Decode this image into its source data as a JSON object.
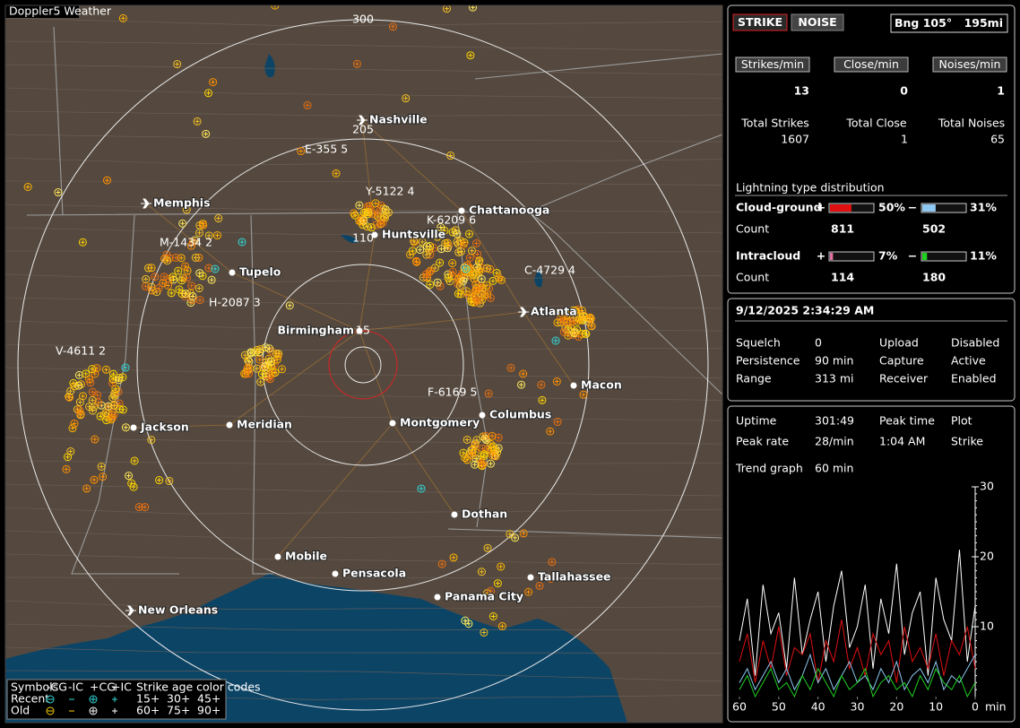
{
  "map": {
    "title": "Doppler5 Weather",
    "range_labels": [
      "300",
      "205",
      "110",
      "15"
    ],
    "cities": [
      "Nashville",
      "Memphis",
      "Chattanooga",
      "Huntsville",
      "Tupelo",
      "Birmingham",
      "Atlanta",
      "Macon",
      "Jackson",
      "Meridian",
      "Montgomery",
      "Columbus",
      "Dothan",
      "Mobile",
      "Pensacola",
      "Tallahassee",
      "Panama City",
      "New Orleans"
    ],
    "storm_labels": [
      "E-355 5",
      "Y-5122 4",
      "K-6209 6",
      "M-1434 2",
      "C-4729 4",
      "H-2087 3",
      "V-4611 2",
      "F-6169 5"
    ],
    "legend": {
      "symbols_label": "Symbols",
      "symbol_headers": [
        "-CG",
        "-IC",
        "+CG",
        "+IC"
      ],
      "age_title": "Strike age color codes",
      "rows": [
        {
          "label": "Recent",
          "ages": [
            "15+",
            "30+",
            "45+"
          ]
        },
        {
          "label": "Old",
          "ages": [
            "60+",
            "75+",
            "90+"
          ]
        }
      ]
    }
  },
  "strike_panel": {
    "buttons": [
      "STRIKE",
      "NOISE"
    ],
    "bearing": "Bng 105°",
    "distance": "195mi",
    "rates": [
      {
        "label": "Strikes/min",
        "value": 13
      },
      {
        "label": "Close/min",
        "value": 0
      },
      {
        "label": "Noises/min",
        "value": 1
      }
    ],
    "totals": [
      {
        "label": "Total Strikes",
        "value": 1607
      },
      {
        "label": "Total Close",
        "value": 1
      },
      {
        "label": "Total Noises",
        "value": 65
      }
    ]
  },
  "distribution": {
    "title": "Lightning type distribution",
    "count_label": "Count",
    "rows": [
      {
        "label": "Cloud-ground",
        "positive": {
          "sign": "+",
          "percent": 50,
          "label": "50%",
          "count": 811,
          "color": "#e01010"
        },
        "negative": {
          "sign": "−",
          "percent": 31,
          "label": "31%",
          "count": 502,
          "color": "#8ec8f0"
        }
      },
      {
        "label": "Intracloud",
        "positive": {
          "sign": "+",
          "percent": 7,
          "label": "7%",
          "count": 114,
          "color": "#e070a0"
        },
        "negative": {
          "sign": "−",
          "percent": 11,
          "label": "11%",
          "count": 180,
          "color": "#20d020"
        }
      }
    ]
  },
  "status": {
    "datetime": "9/12/2025 2:34:29 AM",
    "fields": [
      [
        "Squelch",
        "0",
        "Upload",
        "Disabled"
      ],
      [
        "Persistence",
        "90 min",
        "Capture",
        "Active"
      ],
      [
        "Range",
        "313 mi",
        "Receiver",
        "Enabled"
      ]
    ]
  },
  "trend": {
    "fields": [
      [
        "Uptime",
        "301:49",
        "Peak time",
        "Plot"
      ],
      [
        "Peak rate",
        "28/min",
        "1:04 AM",
        "Strike"
      ]
    ],
    "label": "Trend graph",
    "window": "60 min",
    "unit": "min",
    "xlim": [
      60,
      0
    ],
    "ylim": [
      0,
      30
    ],
    "xticks": [
      60,
      50,
      40,
      30,
      20,
      10,
      0
    ],
    "yticks": [
      10,
      20,
      30
    ],
    "x": [
      60,
      58,
      56,
      54,
      52,
      50,
      48,
      46,
      44,
      42,
      40,
      38,
      36,
      34,
      32,
      30,
      28,
      26,
      24,
      22,
      20,
      18,
      16,
      14,
      12,
      10,
      8,
      6,
      4,
      2,
      0
    ],
    "series": [
      {
        "color": "#ffffff",
        "values": [
          8,
          14,
          3,
          16,
          9,
          12,
          4,
          17,
          6,
          11,
          15,
          5,
          13,
          18,
          7,
          10,
          16,
          4,
          14,
          9,
          19,
          6,
          12,
          15,
          3,
          17,
          11,
          8,
          21,
          5,
          13
        ]
      },
      {
        "color": "#e01010",
        "values": [
          5,
          9,
          2,
          8,
          4,
          10,
          3,
          7,
          6,
          9,
          2,
          8,
          5,
          11,
          4,
          7,
          3,
          9,
          6,
          8,
          2,
          10,
          5,
          7,
          4,
          9,
          3,
          8,
          6,
          10,
          4
        ]
      },
      {
        "color": "#8ec8f0",
        "values": [
          2,
          4,
          1,
          3,
          5,
          2,
          4,
          1,
          3,
          6,
          2,
          4,
          1,
          3,
          5,
          2,
          3,
          1,
          4,
          2,
          5,
          1,
          3,
          4,
          2,
          5,
          1,
          3,
          2,
          4,
          6
        ]
      },
      {
        "color": "#20d020",
        "values": [
          1,
          3,
          0,
          2,
          4,
          1,
          2,
          0,
          3,
          1,
          4,
          2,
          0,
          3,
          1,
          2,
          4,
          0,
          2,
          3,
          1,
          2,
          0,
          3,
          1,
          4,
          2,
          1,
          3,
          0,
          2
        ]
      }
    ]
  }
}
